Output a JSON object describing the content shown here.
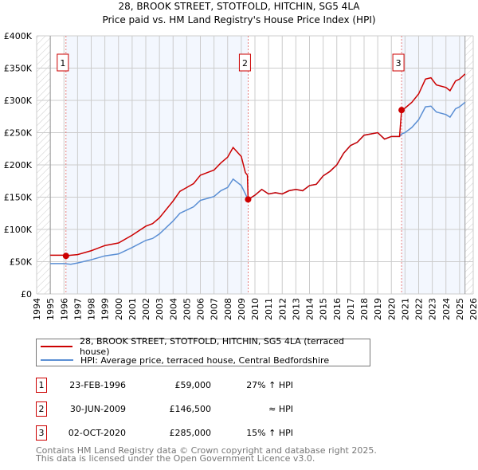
{
  "chart_data": {
    "type": "line",
    "title": "28, BROOK STREET, STOTFOLD, HITCHIN, SG5 4LA",
    "subtitle": "Price paid vs. HM Land Registry's House Price Index (HPI)",
    "xlim": [
      1994,
      2026
    ],
    "ylim": [
      0,
      400000
    ],
    "x_ticks": [
      "1994",
      "1995",
      "1996",
      "1997",
      "1998",
      "1999",
      "2000",
      "2001",
      "2002",
      "2003",
      "2004",
      "2005",
      "2006",
      "2007",
      "2008",
      "2009",
      "2010",
      "2011",
      "2012",
      "2013",
      "2014",
      "2015",
      "2016",
      "2017",
      "2018",
      "2019",
      "2020",
      "2021",
      "2022",
      "2023",
      "2024",
      "2025",
      "2026"
    ],
    "y_ticks": [
      {
        "v": 0,
        "label": "£0"
      },
      {
        "v": 50000,
        "label": "£50K"
      },
      {
        "v": 100000,
        "label": "£100K"
      },
      {
        "v": 150000,
        "label": "£150K"
      },
      {
        "v": 200000,
        "label": "£200K"
      },
      {
        "v": 250000,
        "label": "£250K"
      },
      {
        "v": 300000,
        "label": "£300K"
      },
      {
        "v": 350000,
        "label": "£350K"
      },
      {
        "v": 400000,
        "label": "£400K"
      }
    ],
    "grid": true,
    "data_end": 2025.4,
    "series": [
      {
        "name": "28, BROOK STREET, STOTFOLD, HITCHIN, SG5 4LA (terraced house)",
        "color": "#cc0000",
        "points": [
          [
            1995,
            60
          ],
          [
            1996,
            60
          ],
          [
            1996.15,
            59
          ],
          [
            1996.5,
            60
          ],
          [
            1997,
            61
          ],
          [
            1998,
            67
          ],
          [
            1999,
            75
          ],
          [
            2000,
            79
          ],
          [
            2001,
            91
          ],
          [
            2002,
            105
          ],
          [
            2002.5,
            109
          ],
          [
            2003,
            118
          ],
          [
            2004,
            144
          ],
          [
            2004.5,
            159
          ],
          [
            2005,
            165
          ],
          [
            2005.5,
            171
          ],
          [
            2006,
            184
          ],
          [
            2006.5,
            188
          ],
          [
            2007,
            192
          ],
          [
            2007.5,
            203
          ],
          [
            2008,
            212
          ],
          [
            2008.4,
            227
          ],
          [
            2009,
            213
          ],
          [
            2009.3,
            188
          ],
          [
            2009.45,
            184
          ],
          [
            2009.5,
            146.5
          ],
          [
            2010,
            153
          ],
          [
            2010.5,
            162
          ],
          [
            2011,
            155
          ],
          [
            2011.5,
            157
          ],
          [
            2012,
            155
          ],
          [
            2012.5,
            160
          ],
          [
            2013,
            162
          ],
          [
            2013.5,
            160
          ],
          [
            2014,
            168
          ],
          [
            2014.5,
            170
          ],
          [
            2015,
            183
          ],
          [
            2015.5,
            190
          ],
          [
            2016,
            200
          ],
          [
            2016.5,
            218
          ],
          [
            2017,
            230
          ],
          [
            2017.5,
            235
          ],
          [
            2018,
            246
          ],
          [
            2018.5,
            248
          ],
          [
            2019,
            250
          ],
          [
            2019.5,
            240
          ],
          [
            2020,
            244
          ],
          [
            2020.6,
            244
          ],
          [
            2020.75,
            285
          ],
          [
            2021,
            288
          ],
          [
            2021.5,
            297
          ],
          [
            2022,
            310
          ],
          [
            2022.5,
            333
          ],
          [
            2022.9,
            335
          ],
          [
            2023.3,
            324
          ],
          [
            2024,
            320
          ],
          [
            2024.3,
            315
          ],
          [
            2024.7,
            330
          ],
          [
            2025,
            333
          ],
          [
            2025.4,
            341
          ]
        ]
      },
      {
        "name": "HPI: Average price, terraced house, Central Bedfordshire",
        "color": "#5b8fd4",
        "points": [
          [
            1995,
            47
          ],
          [
            1996,
            47
          ],
          [
            1996.5,
            46
          ],
          [
            1997,
            48
          ],
          [
            1998,
            53
          ],
          [
            1999,
            59
          ],
          [
            2000,
            62
          ],
          [
            2001,
            72
          ],
          [
            2002,
            83
          ],
          [
            2002.5,
            86
          ],
          [
            2003,
            93
          ],
          [
            2004,
            113
          ],
          [
            2004.5,
            125
          ],
          [
            2005,
            130
          ],
          [
            2005.5,
            135
          ],
          [
            2006,
            145
          ],
          [
            2006.5,
            148
          ],
          [
            2007,
            151
          ],
          [
            2007.5,
            160
          ],
          [
            2008,
            165
          ],
          [
            2008.4,
            178
          ],
          [
            2009,
            168
          ],
          [
            2009.3,
            155
          ],
          [
            2009.5,
            146
          ],
          [
            2010,
            153
          ],
          [
            2010.5,
            162
          ],
          [
            2011,
            155
          ],
          [
            2011.5,
            157
          ],
          [
            2012,
            155
          ],
          [
            2012.5,
            160
          ],
          [
            2013,
            162
          ],
          [
            2013.5,
            160
          ],
          [
            2014,
            168
          ],
          [
            2014.5,
            170
          ],
          [
            2015,
            183
          ],
          [
            2015.5,
            190
          ],
          [
            2016,
            200
          ],
          [
            2016.5,
            218
          ],
          [
            2017,
            230
          ],
          [
            2017.5,
            235
          ],
          [
            2018,
            246
          ],
          [
            2018.5,
            248
          ],
          [
            2019,
            250
          ],
          [
            2019.5,
            240
          ],
          [
            2020,
            244
          ],
          [
            2020.6,
            244
          ],
          [
            2020.75,
            248
          ],
          [
            2021,
            250
          ],
          [
            2021.5,
            258
          ],
          [
            2022,
            270
          ],
          [
            2022.5,
            290
          ],
          [
            2022.9,
            291
          ],
          [
            2023.3,
            282
          ],
          [
            2024,
            278
          ],
          [
            2024.3,
            274
          ],
          [
            2024.7,
            287
          ],
          [
            2025,
            290
          ],
          [
            2025.4,
            297
          ]
        ]
      }
    ],
    "sales": [
      {
        "id": "1",
        "x": 1996.15,
        "price": 59000,
        "date": "23-FEB-1996",
        "price_label": "£59,000",
        "hpi": "27% ↑ HPI"
      },
      {
        "id": "2",
        "x": 2009.5,
        "price": 146500,
        "date": "30-JUN-2009",
        "price_label": "£146,500",
        "hpi": "≈ HPI"
      },
      {
        "id": "3",
        "x": 2020.75,
        "price": 285000,
        "date": "02-OCT-2020",
        "price_label": "£285,000",
        "hpi": "15% ↑ HPI"
      }
    ],
    "legend_position": "below"
  },
  "footer": {
    "line1": "Contains HM Land Registry data © Crown copyright and database right 2025.",
    "line2": "This data is licensed under the Open Government Licence v3.0."
  }
}
